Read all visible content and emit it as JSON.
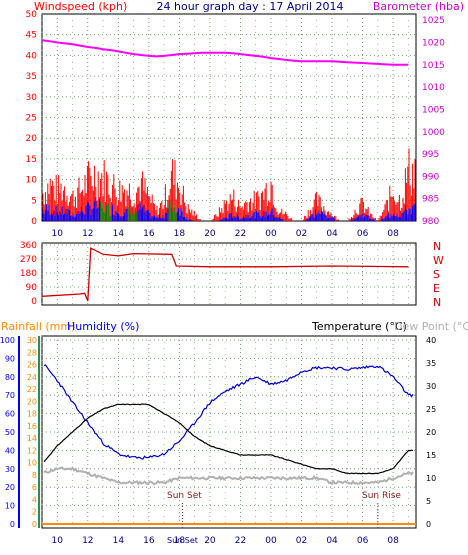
{
  "header": {
    "left_label": "Windspeed (kph)",
    "title": "24 hour graph day : 17 April 2014",
    "right_label": "Barometer (hba)"
  },
  "colors": {
    "wind_gust": "#ff0000",
    "wind_avg": "#0000ff",
    "wind_avg2": "#008000",
    "barometer": "#ff00ff",
    "direction": "#cc0000",
    "humidity": "#0000cc",
    "temperature": "#000000",
    "dewpoint": "#b0b0b0",
    "rainfall": "#ff8c00",
    "humidity_axis": "#0000ff",
    "rain_axis": "#ff8c00",
    "left_axis_text": "#ff0000",
    "title_text": "#000080",
    "baro_axis_text": "#cc00cc",
    "grid": "#4a9a4a"
  },
  "x_axis": {
    "hour_labels": [
      "10",
      "12",
      "14",
      "16",
      "18",
      "20",
      "22",
      "00",
      "02",
      "04",
      "06",
      "08"
    ]
  },
  "panel_wind": {
    "left_ticks": [
      "0",
      "5",
      "10",
      "15",
      "20",
      "25",
      "30",
      "35",
      "40",
      "45",
      "50"
    ],
    "right_ticks": [
      "980",
      "985",
      "990",
      "995",
      "1000",
      "1005",
      "1010",
      "1015",
      "1020",
      "1025"
    ]
  },
  "panel_dir": {
    "left_ticks": [
      "0",
      "90",
      "180",
      "270",
      "360"
    ],
    "compass": [
      "N",
      "W",
      "S",
      "E",
      "N"
    ]
  },
  "panel_temp": {
    "rain_label": "Rainfall (mm)",
    "hum_label": "Humidity (%)",
    "temp_label": "Temperature (°C)",
    "dew_label": "Dew Point (°C)",
    "hum_ticks": [
      "0",
      "10",
      "20",
      "30",
      "40",
      "50",
      "60",
      "70",
      "80",
      "90",
      "100"
    ],
    "rain_ticks": [
      "0",
      "2",
      "4",
      "6",
      "8",
      "10",
      "12",
      "14",
      "16",
      "18",
      "20",
      "22",
      "24",
      "26",
      "28",
      "30"
    ],
    "temp_ticks": [
      "0",
      "5",
      "10",
      "15",
      "20",
      "25",
      "30",
      "35",
      "40"
    ],
    "sunset_label": "Sun Set",
    "sunrise_label": "Sun Rise",
    "sunset_axis_label": "Sun Set"
  },
  "chart_data": [
    {
      "type": "line",
      "title": "24 hour graph day : 17 April 2014",
      "ylabel": "Windspeed (kph)",
      "y2label": "Barometer (hba)",
      "ylim": [
        0,
        50
      ],
      "y2lim": [
        980,
        1025
      ],
      "x_hours": [
        9.0,
        9.5,
        10.0,
        10.5,
        11.0,
        11.5,
        12.0,
        12.5,
        13.0,
        13.5,
        14.0,
        14.5,
        15.0,
        15.5,
        16.0,
        16.5,
        17.0,
        17.5,
        18.0,
        18.5,
        19.0,
        19.5,
        20.0,
        20.5,
        21.0,
        21.5,
        22.0,
        22.5,
        23.0,
        23.5,
        24.0,
        24.5,
        25.0,
        25.5,
        26.0,
        26.5,
        27.0,
        27.5,
        28.0,
        28.5,
        29.0,
        29.5,
        30.0,
        30.5,
        31.0,
        31.5,
        32.0,
        32.5,
        33.0
      ],
      "series": [
        {
          "name": "Gust",
          "values": [
            8,
            11,
            9,
            10,
            7,
            9,
            12,
            14,
            13,
            11,
            9,
            10,
            8,
            11,
            7,
            3,
            6,
            14,
            11,
            4,
            2,
            0,
            0,
            2,
            5,
            7,
            4,
            6,
            6,
            8,
            12,
            3,
            2,
            0,
            0,
            3,
            6,
            4,
            2,
            0,
            0,
            3,
            5,
            2,
            0,
            4,
            9,
            6,
            15
          ]
        },
        {
          "name": "Average",
          "values": [
            3,
            4,
            3,
            3,
            2,
            3,
            4,
            5,
            4,
            4,
            3,
            3,
            3,
            4,
            2,
            1,
            2,
            5,
            4,
            1,
            0,
            0,
            0,
            0,
            1,
            2,
            1,
            2,
            2,
            2,
            3,
            1,
            0,
            0,
            0,
            1,
            3,
            2,
            1,
            0,
            0,
            1,
            2,
            1,
            0,
            1,
            3,
            2,
            4
          ]
        },
        {
          "name": "Barometer",
          "values": [
            1020.5,
            1020.3,
            1020.0,
            1019.8,
            1019.6,
            1019.3,
            1019.0,
            1018.8,
            1018.5,
            1018.3,
            1018.0,
            1017.7,
            1017.4,
            1017.2,
            1017.0,
            1016.9,
            1017.0,
            1017.2,
            1017.4,
            1017.5,
            1017.6,
            1017.7,
            1017.7,
            1017.7,
            1017.7,
            1017.6,
            1017.4,
            1017.2,
            1017.0,
            1016.8,
            1016.5,
            1016.3,
            1016.1,
            1015.9,
            1015.8,
            1015.8,
            1015.8,
            1015.8,
            1015.8,
            1015.7,
            1015.6,
            1015.5,
            1015.4,
            1015.3,
            1015.2,
            1015.1,
            1015.0,
            1015.0,
            1015.0
          ]
        }
      ]
    },
    {
      "type": "line",
      "ylim": [
        0,
        360
      ],
      "x_hours": [
        9.0,
        11.5,
        11.8,
        12.0,
        12.2,
        13.0,
        14.0,
        15.0,
        17.5,
        17.8,
        20.0,
        24.0,
        28.0,
        33.0
      ],
      "series": [
        {
          "name": "Direction",
          "values": [
            30,
            45,
            50,
            0,
            340,
            300,
            290,
            305,
            300,
            225,
            220,
            220,
            225,
            220
          ]
        }
      ]
    },
    {
      "type": "line",
      "rain_label": "Rainfall (mm)",
      "hum_label": "Humidity (%)",
      "temp_label": "Temperature (°C)",
      "dew_label": "Dew Point (°C)",
      "humidity_ylim": [
        0,
        100
      ],
      "rain_ylim": [
        0,
        30
      ],
      "temp_ylim": [
        0,
        40
      ],
      "x_hours": [
        9.0,
        10.0,
        11.0,
        12.0,
        13.0,
        14.0,
        15.0,
        16.0,
        17.0,
        18.0,
        19.0,
        20.0,
        21.0,
        22.0,
        23.0,
        24.0,
        25.0,
        26.0,
        27.0,
        28.0,
        29.0,
        30.0,
        31.0,
        32.0,
        33.0
      ],
      "series": [
        {
          "name": "Humidity",
          "values": [
            88,
            78,
            66,
            55,
            44,
            38,
            36,
            36,
            38,
            45,
            55,
            66,
            72,
            76,
            80,
            76,
            78,
            83,
            85,
            85,
            84,
            85,
            86,
            80,
            70
          ]
        },
        {
          "name": "Temperature",
          "values": [
            13,
            17,
            20,
            23,
            25,
            26,
            26,
            26,
            24,
            22,
            19,
            17,
            16,
            15,
            15,
            15,
            14,
            13,
            12,
            12,
            11,
            11,
            11,
            12,
            16
          ]
        },
        {
          "name": "Dew Point",
          "values": [
            11,
            12,
            12,
            11,
            10,
            9,
            9,
            9,
            9,
            10,
            10,
            10,
            10,
            10,
            10,
            10,
            10,
            10,
            10,
            9,
            9,
            9,
            9,
            10,
            11
          ]
        },
        {
          "name": "Rainfall",
          "values": [
            0,
            0,
            0,
            0,
            0,
            0,
            0,
            0,
            0,
            0,
            0,
            0,
            0,
            0,
            0,
            0,
            0,
            0,
            0,
            0,
            0,
            0,
            0,
            0,
            0
          ]
        }
      ],
      "sunset_hour": 18.2,
      "sunrise_hour": 31.0
    }
  ]
}
